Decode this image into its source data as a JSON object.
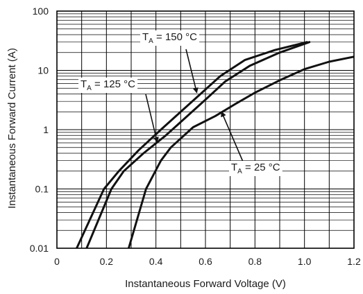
{
  "chart_data": {
    "type": "line",
    "title": "",
    "xlabel": "Instantaneous Forward Voltage (V)",
    "ylabel": "Instantaneous Forward Current (A)",
    "x_scale": "linear",
    "y_scale": "log",
    "xlim": [
      0,
      1.2
    ],
    "ylim": [
      0.01,
      100
    ],
    "x_ticks": [
      0,
      0.2,
      0.4,
      0.6,
      0.8,
      1.0,
      1.2
    ],
    "x_tick_labels": [
      "0",
      "0.2",
      "0.4",
      "0.6",
      "0.8",
      "1.0",
      "1.2"
    ],
    "y_ticks": [
      0.01,
      0.1,
      1,
      10,
      100
    ],
    "y_tick_labels": [
      "0.01",
      "0.1",
      "1",
      "10",
      "100"
    ],
    "grid": true,
    "legend": "none",
    "series": [
      {
        "name": "T_A = 150 °C",
        "x": [
          0.08,
          0.19,
          0.25,
          0.33,
          0.42,
          0.5,
          0.58,
          0.66,
          0.76,
          0.88,
          1.01
        ],
        "y": [
          0.01,
          0.1,
          0.2,
          0.45,
          1,
          2,
          4,
          8,
          15,
          22,
          30
        ]
      },
      {
        "name": "T_A = 125 °C",
        "x": [
          0.12,
          0.22,
          0.27,
          0.35,
          0.44,
          0.52,
          0.6,
          0.68,
          0.78,
          0.9,
          1.02
        ],
        "y": [
          0.01,
          0.1,
          0.2,
          0.4,
          0.8,
          1.6,
          3.2,
          6.5,
          12,
          20,
          30
        ]
      },
      {
        "name": "T_A = 25 °C",
        "x": [
          0.29,
          0.36,
          0.42,
          0.46,
          0.55,
          0.64,
          0.72,
          0.8,
          0.9,
          1.0,
          1.1,
          1.2
        ],
        "y": [
          0.01,
          0.1,
          0.3,
          0.5,
          1.1,
          1.7,
          2.7,
          4.2,
          6.8,
          10.5,
          14,
          17
        ]
      }
    ],
    "annotations": [
      {
        "prefix": "T",
        "sub": "A",
        "suffix": " = 150 °C",
        "target": {
          "x": 0.565,
          "y": 4.2
        }
      },
      {
        "prefix": "T",
        "sub": "A",
        "suffix": " = 125 °C",
        "target": {
          "x": 0.405,
          "y": 0.62
        }
      },
      {
        "prefix": "T",
        "sub": "A",
        "suffix": " = 25 °C",
        "target": {
          "x": 0.665,
          "y": 2.0
        }
      }
    ]
  }
}
